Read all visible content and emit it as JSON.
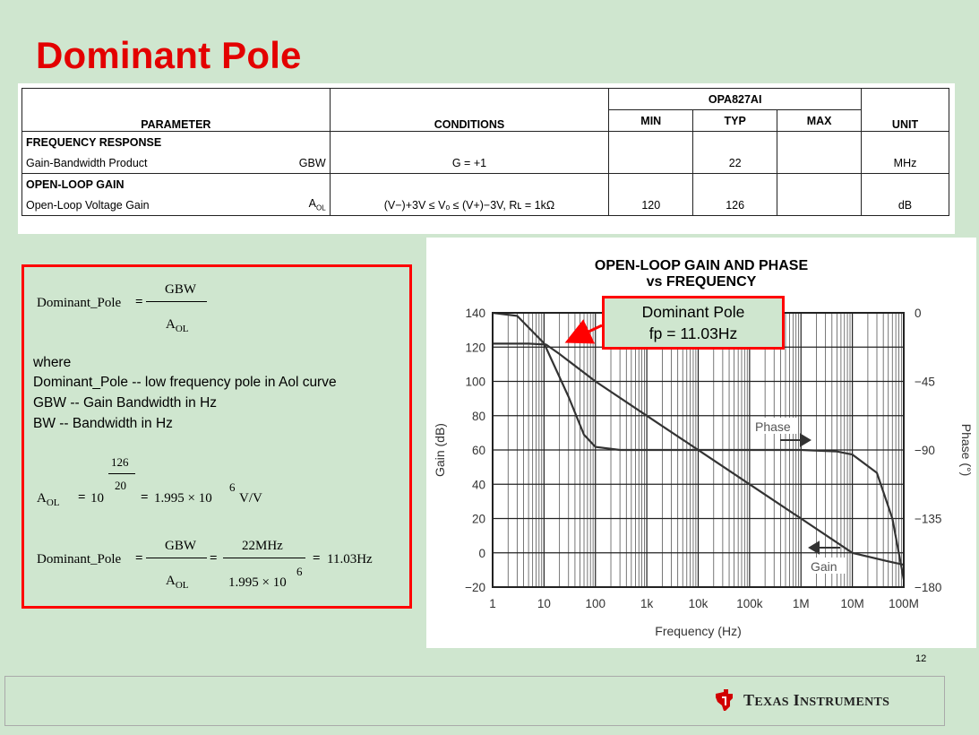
{
  "slide": {
    "title": "Dominant Pole",
    "page_number": "12",
    "brand": "Texas Instruments"
  },
  "spec_table": {
    "device": "OPA827AI",
    "headers": {
      "parameter": "PARAMETER",
      "conditions": "CONDITIONS",
      "min": "MIN",
      "typ": "TYP",
      "max": "MAX",
      "unit": "UNIT"
    },
    "sections": [
      {
        "section": "FREQUENCY RESPONSE",
        "name": "Gain-Bandwidth Product",
        "symbol": "GBW",
        "conditions": "G = +1",
        "min": "",
        "typ": "22",
        "max": "",
        "unit": "MHz"
      },
      {
        "section": "OPEN-LOOP GAIN",
        "name": "Open-Loop Voltage Gain",
        "symbol": "A",
        "symbol_sub": "OL",
        "conditions": "(V−)+3V ≤ Vₒ ≤ (V+)−3V, Rʟ = 1kΩ",
        "min": "120",
        "typ": "126",
        "max": "",
        "unit": "dB"
      }
    ]
  },
  "formula": {
    "lhs": "Dominant_Pole",
    "eq": "=",
    "num": "GBW",
    "den_main": "A",
    "den_sub": "OL",
    "where": "where",
    "def1": "Dominant_Pole -- low frequency pole in Aol curve",
    "def2": "GBW -- Gain Bandwidth in Hz",
    "def3": "BW -- Bandwidth in Hz",
    "aol_exp_num": "126",
    "aol_exp_den": "20",
    "aol_base": "10",
    "aol_result": "1.995 × 10",
    "aol_result_exp": "6",
    "aol_unit": "V/V",
    "num2": "22MHz",
    "den2": "1.995 × 10",
    "den2_exp": "6",
    "result": "11.03Hz"
  },
  "callout": {
    "line1": "Dominant Pole",
    "line2": "fp = 11.03Hz"
  },
  "chart_data": {
    "type": "line",
    "title": "OPEN-LOOP GAIN AND PHASE",
    "subtitle": "vs FREQUENCY",
    "xlabel": "Frequency (Hz)",
    "ylabel": "Gain (dB)",
    "y2label": "Phase (°)",
    "x_scale": "log",
    "xlim": [
      1,
      100000000
    ],
    "ylim": [
      -20,
      140
    ],
    "y2lim": [
      -180,
      0
    ],
    "x_ticks": [
      "1",
      "10",
      "100",
      "1k",
      "10k",
      "100k",
      "1M",
      "10M",
      "100M"
    ],
    "y_ticks": [
      "140",
      "120",
      "100",
      "80",
      "60",
      "40",
      "20",
      "0",
      "−20"
    ],
    "y2_ticks": [
      "0",
      "−45",
      "−90",
      "−135",
      "−180"
    ],
    "grid": true,
    "series": [
      {
        "name": "Gain",
        "axis": "left",
        "x": [
          1,
          5,
          11,
          20,
          100,
          1000,
          10000,
          100000,
          1000000,
          10000000,
          50000000,
          100000000
        ],
        "y": [
          122,
          122,
          121.5,
          116,
          100,
          80,
          60,
          40,
          20,
          0,
          -5,
          -7
        ]
      },
      {
        "name": "Phase",
        "axis": "right",
        "x": [
          1,
          3,
          10,
          30,
          60,
          100,
          300,
          1000,
          100000,
          1000000,
          5000000,
          10000000,
          30000000,
          60000000,
          100000000
        ],
        "y": [
          0,
          -2,
          -20,
          -55,
          -80,
          -88,
          -90,
          -90,
          -90,
          -90,
          -91,
          -93,
          -105,
          -135,
          -175
        ]
      }
    ],
    "annotations": [
      "Phase",
      "Gain"
    ]
  }
}
